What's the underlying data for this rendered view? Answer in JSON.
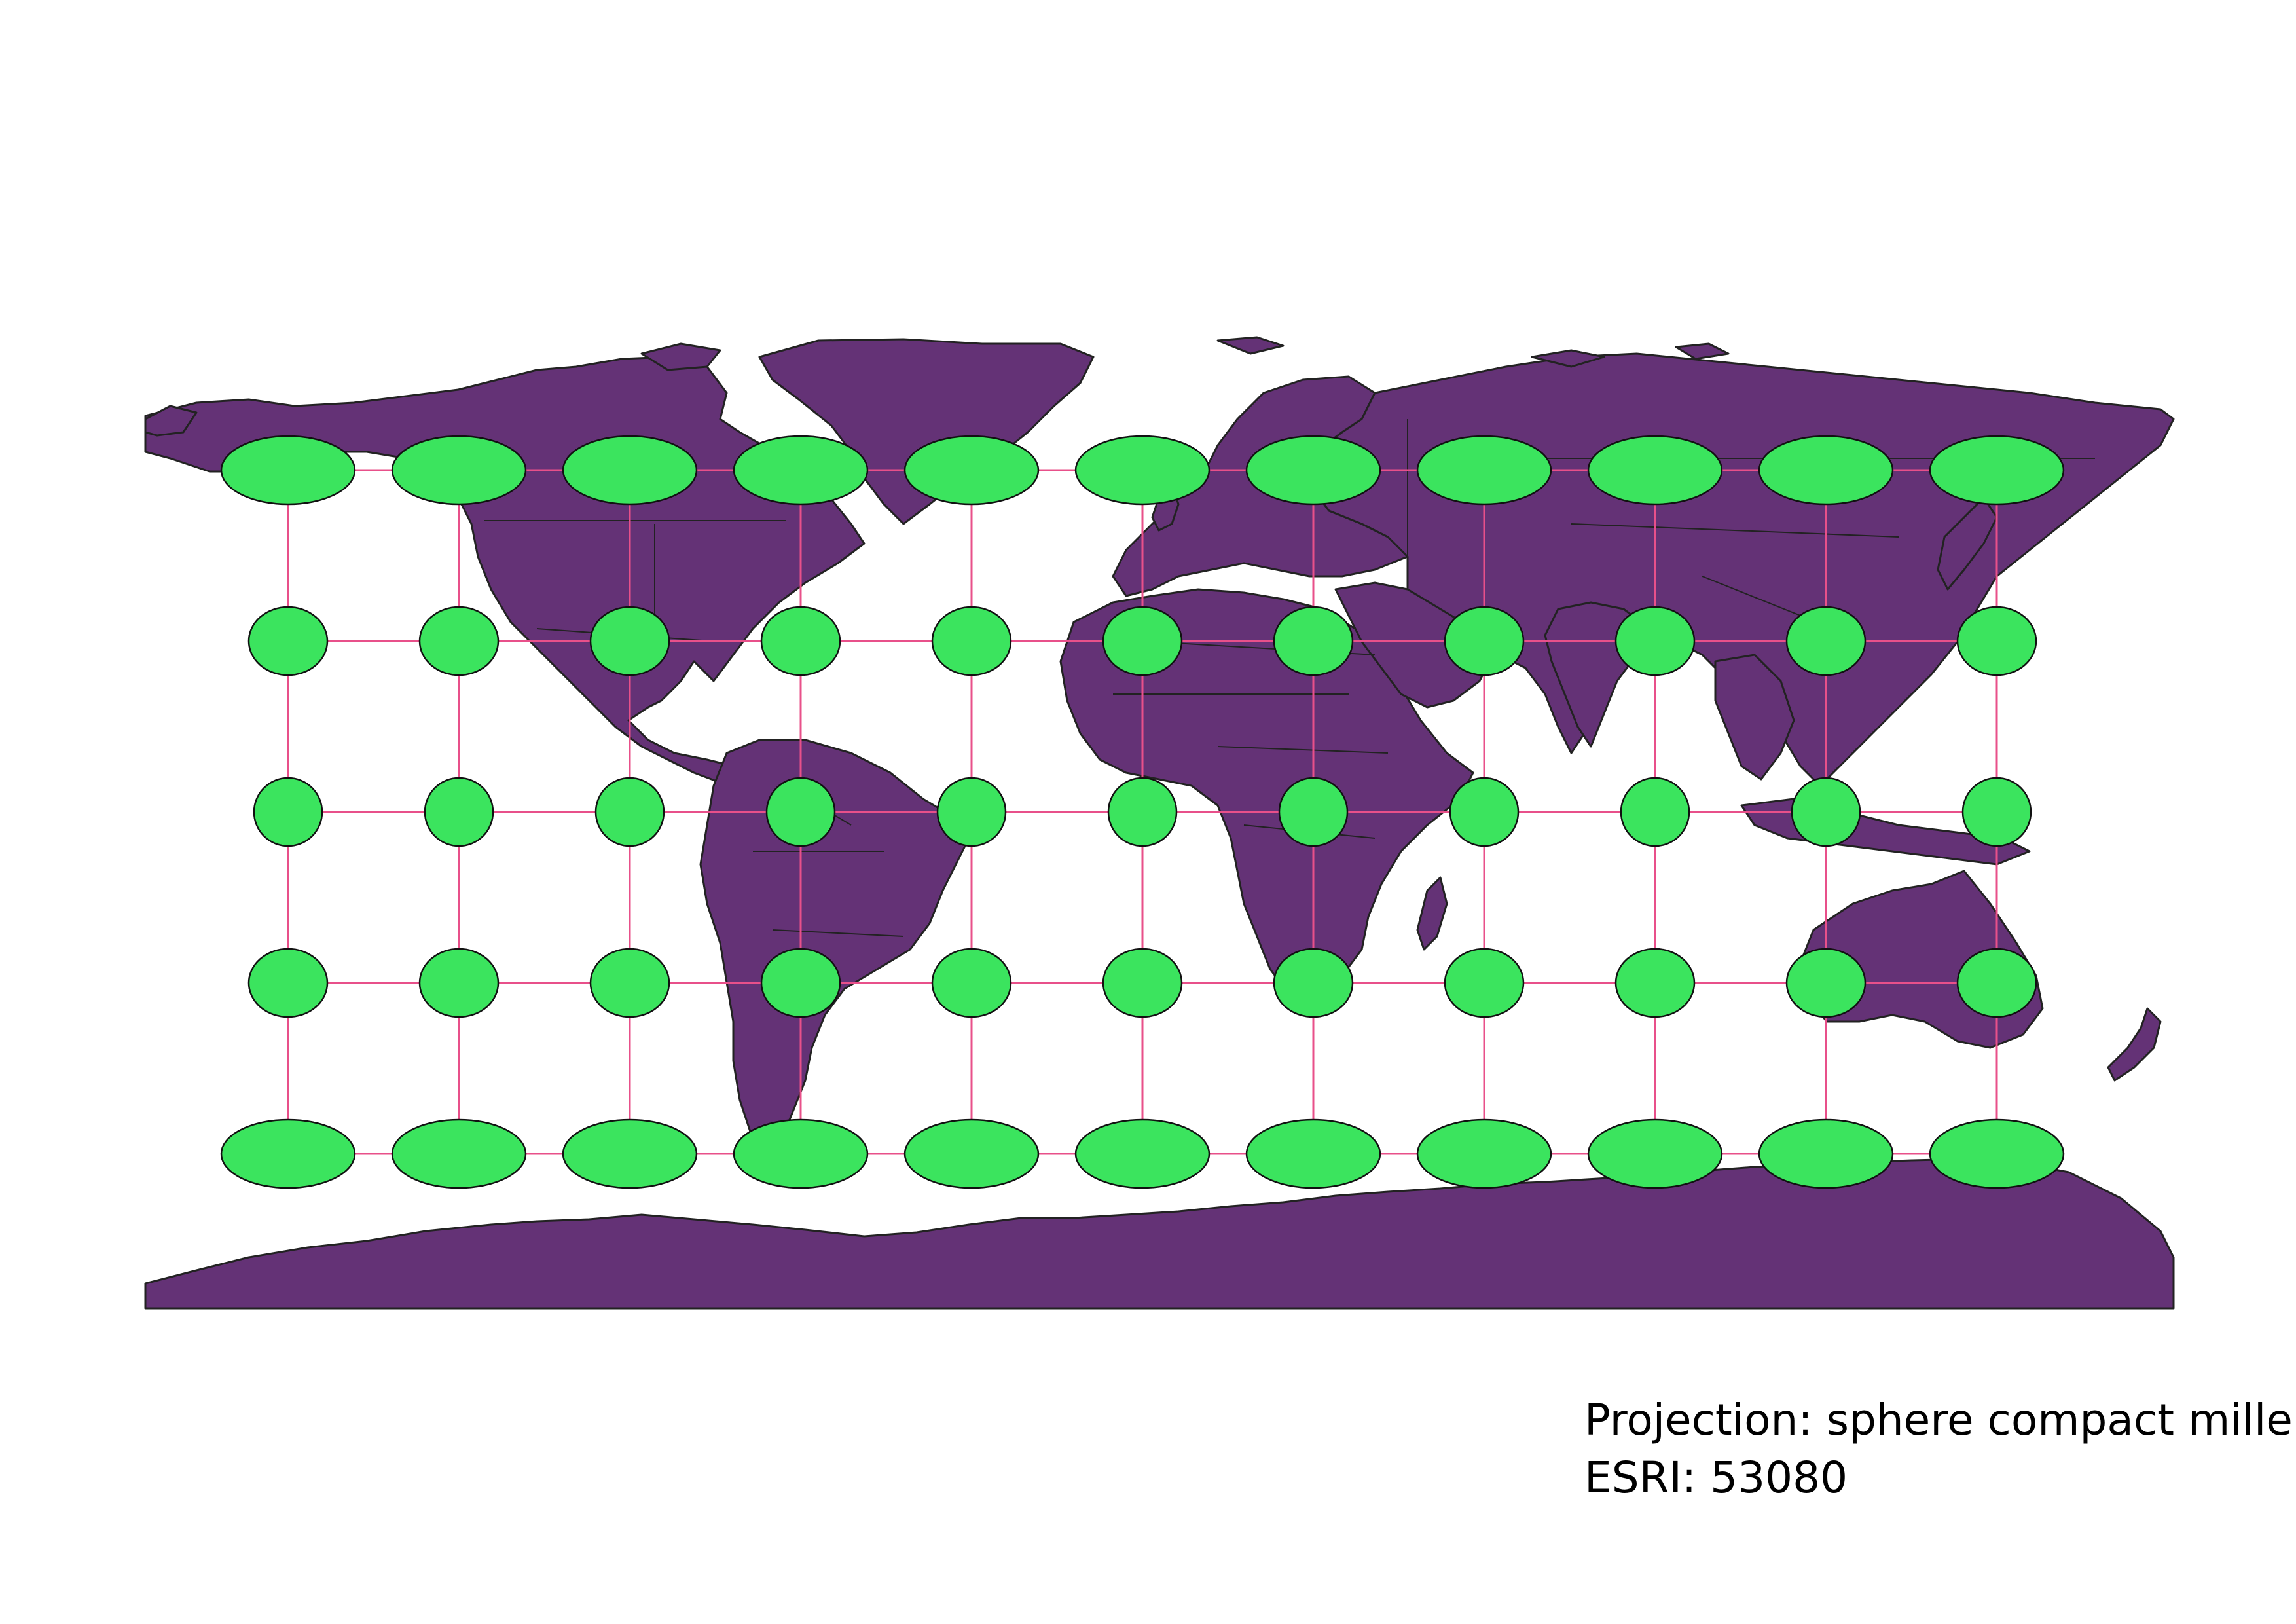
{
  "map": {
    "projection_label": "Projection: sphere compact miller",
    "esri_label": "ESRI: 53080",
    "colors": {
      "land": "#643276",
      "land_outline": "#222222",
      "graticule": "#e8508a",
      "indicatrix": "#3be45e",
      "background": "#ffffff"
    },
    "graticule": {
      "longitudes": [
        -150,
        -120,
        -90,
        -60,
        -30,
        0,
        30,
        60,
        90,
        120,
        150
      ],
      "latitudes": [
        60,
        30,
        0,
        -30,
        -60
      ]
    },
    "indicatrix_shape": "ellipse"
  }
}
